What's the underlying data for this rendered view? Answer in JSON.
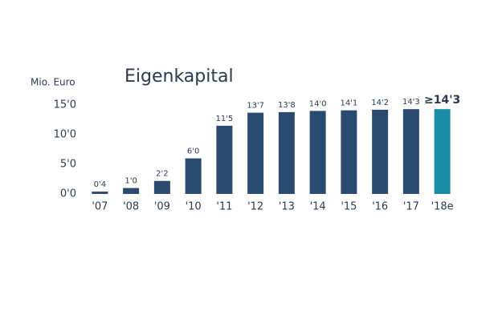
{
  "chart_data": {
    "type": "bar",
    "title": "Eigenkapital",
    "y_label": "Mio. Euro",
    "categories": [
      "'07",
      "'08",
      "'09",
      "'10",
      "'11",
      "'12",
      "'13",
      "'14",
      "'15",
      "'16",
      "'17",
      "'18e"
    ],
    "values": [
      0.4,
      1.0,
      2.2,
      6.0,
      11.5,
      13.7,
      13.8,
      14.0,
      14.1,
      14.2,
      14.3,
      14.3
    ],
    "value_labels": [
      "0'4",
      "1'0",
      "2'2",
      "6'0",
      "11'5",
      "13'7",
      "13'8",
      "14'0",
      "14'1",
      "14'2",
      "14'3",
      "≥14'3"
    ],
    "colors": [
      "#2b4a70",
      "#2b4a70",
      "#2b4a70",
      "#2b4a70",
      "#2b4a70",
      "#2b4a70",
      "#2b4a70",
      "#2b4a70",
      "#2b4a70",
      "#2b4a70",
      "#2b4a70",
      "#1a8ca6"
    ],
    "ylim": [
      0,
      15
    ],
    "yticks": [
      {
        "value": 0,
        "label": "0'0"
      },
      {
        "value": 5,
        "label": "5'0"
      },
      {
        "value": 10,
        "label": "10'0"
      },
      {
        "value": 15,
        "label": "15'0"
      }
    ],
    "grid": false
  }
}
